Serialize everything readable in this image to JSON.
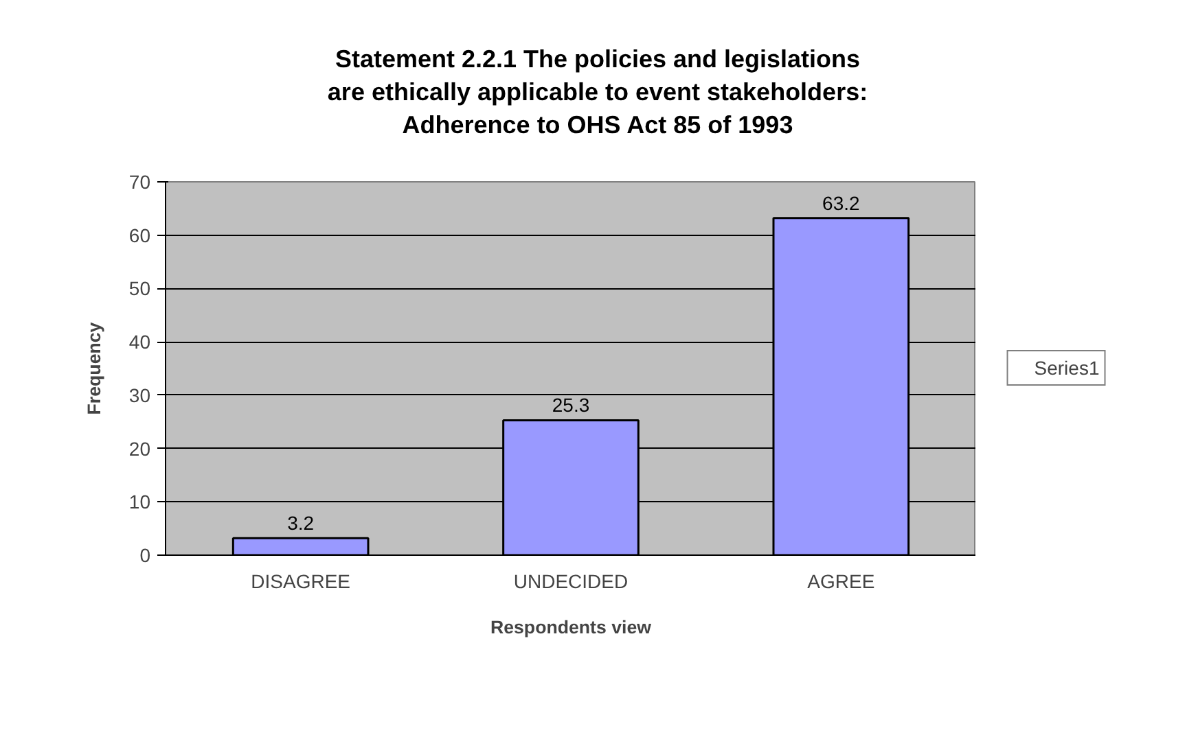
{
  "chart_data": {
    "type": "bar",
    "title": "Statement 2.2.1 The policies and legislations\nare ethically applicable to event stakeholders:\nAdherence to OHS Act 85 of 1993",
    "xlabel": "Respondents view",
    "ylabel": "Frequency",
    "categories": [
      "DISAGREE",
      "UNDECIDED",
      "AGREE"
    ],
    "series": [
      {
        "name": "Series1",
        "color": "#9999ff",
        "values": [
          3.2,
          25.3,
          63.2
        ]
      }
    ],
    "ylim": [
      0,
      70
    ],
    "yticks": [
      0,
      10,
      20,
      30,
      40,
      50,
      60,
      70
    ],
    "grid": "y",
    "legend": "right",
    "data_labels": true
  }
}
